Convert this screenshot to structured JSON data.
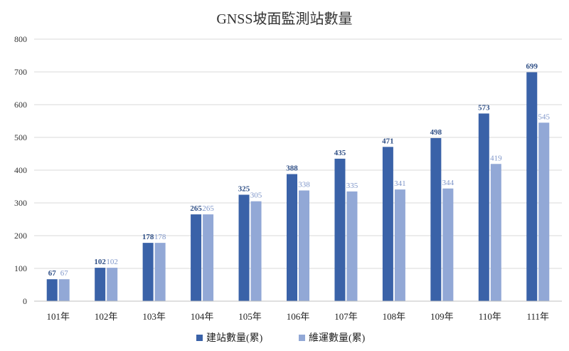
{
  "chart_data": {
    "type": "bar",
    "title": "GNSS坡面監測站數量",
    "xlabel": "",
    "ylabel": "",
    "ylim": [
      0,
      800
    ],
    "yticks": [
      0,
      100,
      200,
      300,
      400,
      500,
      600,
      700,
      800
    ],
    "grid": true,
    "legend_position": "bottom",
    "categories": [
      "101年",
      "102年",
      "103年",
      "104年",
      "105年",
      "106年",
      "107年",
      "108年",
      "109年",
      "110年",
      "111年"
    ],
    "series": [
      {
        "name": "建站數量(累)",
        "color": "#3a62a8",
        "label_color": "#2f4f86",
        "values": [
          67,
          102,
          178,
          265,
          325,
          388,
          435,
          471,
          498,
          573,
          699
        ]
      },
      {
        "name": "維運數量(累)",
        "color": "#92a8d6",
        "label_color": "#7f96c9",
        "values": [
          67,
          102,
          178,
          265,
          305,
          338,
          335,
          341,
          344,
          419,
          545
        ]
      }
    ]
  }
}
